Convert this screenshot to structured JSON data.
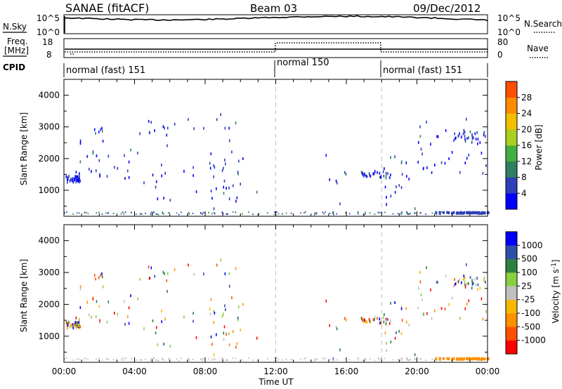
{
  "header": {
    "title": "SANAE (fitACF)",
    "beam": "Beam 03",
    "date": "09/Dec/2012"
  },
  "labels": {
    "nsky": "N.Sky",
    "nsearch": "N.Search",
    "freq": "Freq.",
    "freq_unit": "[MHz]",
    "nave": "Nave",
    "cpid": "CPID",
    "time_axis": "Time UT",
    "range_axis": "Slant Range [km]",
    "power_label": "Power [dB]",
    "velocity_label": "Velocity  [m s",
    "velocity_exp": "-1",
    "velocity_close": "]"
  },
  "noise_panel": {
    "left_ticks": [
      "10^5",
      "10^0"
    ],
    "right_ticks": [
      "10^5",
      "10^0"
    ]
  },
  "freq_panel": {
    "left_ticks": [
      "18",
      "8"
    ],
    "right_ticks": [
      "80",
      "0"
    ]
  },
  "cpid_modes": [
    {
      "label": "normal (fast) 151",
      "start": 0,
      "end": 12
    },
    {
      "label": "normal 150",
      "start": 12,
      "end": 18
    },
    {
      "label": "normal (fast) 151",
      "start": 18,
      "end": 24
    }
  ],
  "colors": {
    "power": [
      "#0000ff",
      "#2e3fb8",
      "#2e8060",
      "#40b040",
      "#a8d020",
      "#f0c000",
      "#ff8c00",
      "#ff5000",
      "#ff0000"
    ],
    "velocity": [
      "#ff0000",
      "#ff5000",
      "#ff9000",
      "#f8b800",
      "#c0c0c0",
      "#88d040",
      "#2e8040",
      "#2e4fa8",
      "#0000ff"
    ]
  },
  "chart_data": [
    {
      "type": "heatmap",
      "name": "power",
      "ylabel": "Slant Range [km]",
      "xlabel": "",
      "x_ticks": [
        "00:00",
        "04:00",
        "08:00",
        "12:00",
        "16:00",
        "20:00",
        "00:00"
      ],
      "y_ticks": [
        "1000",
        "2000",
        "3000",
        "4000"
      ],
      "xlim": [
        0,
        24
      ],
      "ylim": [
        180,
        4500
      ],
      "colorbar_label": "Power [dB]",
      "colorbar_ticks": [
        "4",
        "8",
        "12",
        "16",
        "20",
        "24",
        "28"
      ],
      "colorbar_range": [
        0,
        30
      ]
    },
    {
      "type": "heatmap",
      "name": "velocity",
      "ylabel": "Slant Range [km]",
      "xlabel": "Time UT",
      "x_ticks": [
        "00:00",
        "04:00",
        "08:00",
        "12:00",
        "16:00",
        "20:00",
        "00:00"
      ],
      "y_ticks": [
        "1000",
        "2000",
        "3000",
        "4000"
      ],
      "xlim": [
        0,
        24
      ],
      "ylim": [
        180,
        4500
      ],
      "colorbar_label": "Velocity [m s-1]",
      "colorbar_ticks": [
        "-1000",
        "-500",
        "-100",
        "-25",
        "25",
        "100",
        "500",
        "1000"
      ],
      "colorbar_range": [
        -1200,
        1200
      ]
    }
  ],
  "mode_boundaries_hours": [
    12,
    18
  ]
}
